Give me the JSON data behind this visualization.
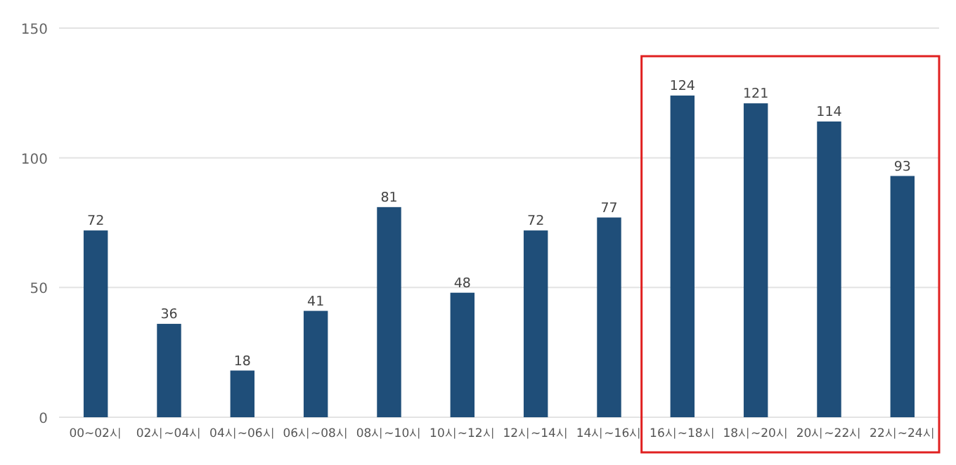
{
  "chart_data": {
    "type": "bar",
    "categories": [
      "00~02시",
      "02시~04시",
      "04시~06시",
      "06시~08시",
      "08시~10시",
      "10시~12시",
      "12시~14시",
      "14시~16시",
      "16시~18시",
      "18시~20시",
      "20시~22시",
      "22시~24시"
    ],
    "values": [
      72,
      36,
      18,
      41,
      81,
      48,
      72,
      77,
      124,
      121,
      114,
      93
    ],
    "color": "#1f4e79",
    "ylim": [
      0,
      150
    ],
    "yticks": [
      0,
      50,
      100,
      150
    ],
    "grid": "y",
    "data_labels": true
  }
}
